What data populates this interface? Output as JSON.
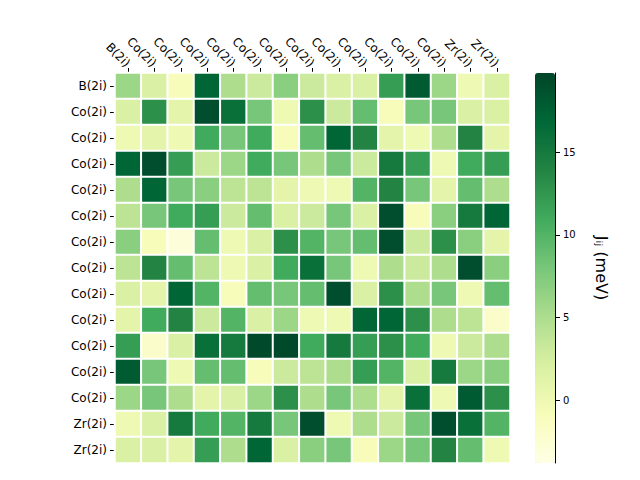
{
  "chart_data": {
    "type": "heatmap",
    "x_labels": [
      "B(2i)",
      "Co(2i)",
      "Co(2i)",
      "Co(2i)",
      "Co(2i)",
      "Co(2i)",
      "Co(2i)",
      "Co(2i)",
      "Co(2i)",
      "Co(2i)",
      "Co(2i)",
      "Co(2i)",
      "Co(2i)",
      "Zr(2i)",
      "Zr(2i)"
    ],
    "y_labels": [
      "B(2i)",
      "Co(2i)",
      "Co(2i)",
      "Co(2i)",
      "Co(2i)",
      "Co(2i)",
      "Co(2i)",
      "Co(2i)",
      "Co(2i)",
      "Co(2i)",
      "Co(2i)",
      "Co(2i)",
      "Co(2i)",
      "Zr(2i)",
      "Zr(2i)"
    ],
    "cells": [
      [
        6,
        2,
        -1,
        17,
        5,
        3,
        7,
        3,
        2,
        2,
        12,
        18,
        6,
        0,
        2
      ],
      [
        2,
        13,
        1,
        19,
        16,
        8,
        0,
        13,
        3,
        9,
        -1,
        8,
        8,
        2,
        2
      ],
      [
        0,
        1,
        0,
        11,
        8,
        11,
        -1,
        9,
        17,
        14,
        1,
        0,
        5,
        14,
        1
      ],
      [
        17,
        19,
        12,
        3,
        6,
        11,
        8,
        5,
        8,
        3,
        15,
        12,
        0,
        11,
        12
      ],
      [
        5,
        17,
        8,
        7,
        4,
        4,
        1,
        0,
        0,
        10,
        14,
        8,
        1,
        9,
        5
      ],
      [
        4,
        8,
        11,
        12,
        3,
        9,
        2,
        3,
        8,
        2,
        19,
        -1,
        7,
        15,
        17
      ],
      [
        7,
        -1,
        -3,
        9,
        0,
        2,
        13,
        10,
        8,
        9,
        19,
        3,
        13,
        7,
        1
      ],
      [
        4,
        14,
        9,
        4,
        0,
        2,
        11,
        16,
        8,
        0,
        5,
        3,
        5,
        19,
        7
      ],
      [
        2,
        1,
        17,
        10,
        -1,
        9,
        8,
        9,
        19,
        2,
        13,
        5,
        8,
        0,
        9
      ],
      [
        1,
        11,
        14,
        3,
        10,
        2,
        6,
        0,
        0,
        17,
        17,
        13,
        5,
        4,
        -2
      ],
      [
        12,
        -2,
        2,
        16,
        15,
        19.5,
        19.5,
        11,
        15,
        12,
        13,
        11,
        0,
        3,
        5
      ],
      [
        18,
        8,
        0,
        9,
        9,
        -1,
        3,
        4,
        5,
        12,
        10,
        2,
        15,
        6,
        7
      ],
      [
        6,
        8,
        5,
        1,
        2,
        6,
        13,
        5,
        8,
        5,
        1,
        16,
        0,
        18,
        13
      ],
      [
        0,
        2,
        15,
        11,
        10,
        15,
        8,
        19,
        0,
        5,
        3,
        8,
        19,
        16,
        10
      ],
      [
        2,
        2,
        1,
        12,
        5,
        17,
        2,
        7,
        8,
        -1,
        6,
        8,
        14,
        9,
        0
      ]
    ],
    "colorbar_label": "Jᵢⱼ (meV)",
    "colorbar_range": [
      -3.8,
      19.8
    ],
    "colorbar_ticks": [
      0,
      5,
      10,
      15
    ]
  }
}
